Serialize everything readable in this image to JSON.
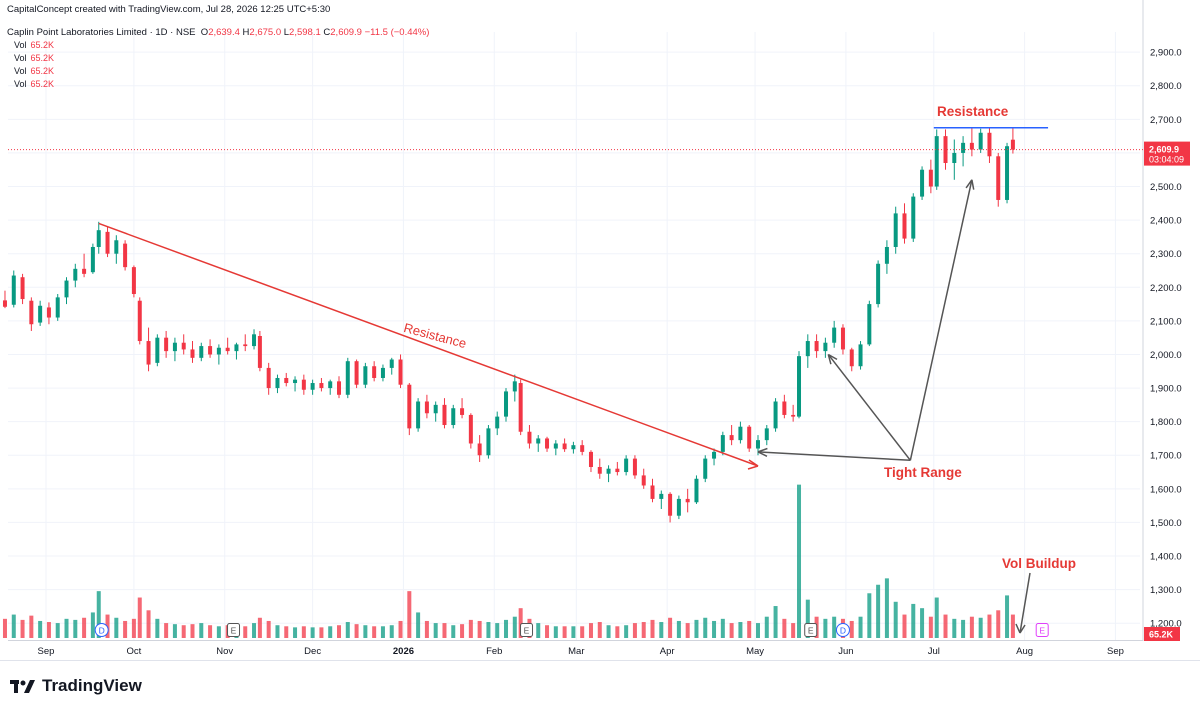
{
  "header": {
    "credit": "CapitalConcept created with TradingView.com, Jul 28, 2026 12:25 UTC+5:30",
    "symbol": "Caplin Point Laboratories Limited · 1D · NSE",
    "o_label": "O",
    "o_value": "2,639.4",
    "h_label": "H",
    "h_value": "2,675.0",
    "l_label": "L",
    "l_value": "2,598.1",
    "c_label": "C",
    "c_value": "2,609.9",
    "change": "−11.5 (−0.44%)",
    "vol_rows": [
      {
        "label": "Vol",
        "value": "65.2K"
      },
      {
        "label": "Vol",
        "value": "65.2K"
      },
      {
        "label": "Vol",
        "value": "65.2K"
      },
      {
        "label": "Vol",
        "value": "65.2K"
      }
    ]
  },
  "footer": {
    "brand": "TradingView"
  },
  "colors": {
    "up": "#089981",
    "down": "#f23645",
    "trend": "#e53935",
    "resistance": "#2962ff",
    "arrow": "#555555",
    "grid": "#f0f3fa"
  },
  "chart_data": {
    "type": "candlestick",
    "ylim": [
      1150,
      2960
    ],
    "y_ticks": [
      1200,
      1300,
      1400,
      1500,
      1600,
      1700,
      1800,
      1900,
      2000,
      2100,
      2200,
      2300,
      2400,
      2500,
      2600,
      2700,
      2800,
      2900
    ],
    "y_tick_labels": [
      "1,200.0",
      "1,300.0",
      "1,400.0",
      "1,500.0",
      "1,600.0",
      "1,700.0",
      "1,800.0",
      "1,900.0",
      "2,000.0",
      "2,100.0",
      "2,200.0",
      "2,300.0",
      "2,400.0",
      "2,500.0",
      "2,600.0",
      "2,700.0",
      "2,800.0",
      "2,900.0"
    ],
    "x_labels": [
      "Sep",
      "Oct",
      "Nov",
      "Dec",
      "2026",
      "Feb",
      "Mar",
      "Apr",
      "May",
      "Jun",
      "Jul",
      "Aug",
      "Sep"
    ],
    "last_price": "2,609.9",
    "last_price_value": 2609.9,
    "countdown": "03:04:09",
    "last_volume": "65.2K",
    "event_markers": [
      {
        "date": "2025-09-20",
        "label": "D"
      },
      {
        "date": "2025-11-04",
        "label": "E"
      },
      {
        "date": "2026-02-12",
        "label": "E"
      },
      {
        "date": "2026-05-20",
        "label": "E"
      },
      {
        "date": "2026-05-31",
        "label": "D"
      },
      {
        "date": "2026-08-07",
        "label": "E"
      }
    ],
    "annotations": {
      "trendline": {
        "label": "Resistance",
        "from": {
          "date": "2025-09-19",
          "price": 2390
        },
        "to": {
          "date": "2026-05-02",
          "price": 1668
        }
      },
      "resistance": {
        "label": "Resistance",
        "price": 2675,
        "from": "2026-07-01",
        "to": "2026-08-09"
      },
      "tight_range": {
        "label": "Tight Range",
        "anchor": {
          "date": "2026-06-23",
          "price": 1685
        },
        "targets": [
          {
            "date": "2026-05-02",
            "price": 1710
          },
          {
            "date": "2026-05-26",
            "price": 2000
          },
          {
            "date": "2026-07-14",
            "price": 2520
          }
        ]
      },
      "vol_buildup": {
        "label": "Vol Buildup"
      }
    },
    "candles": [
      {
        "d": "2025-08-18",
        "o": 2161,
        "h": 2190,
        "l": 2138,
        "c": 2142,
        "v": 90
      },
      {
        "d": "2025-08-21",
        "o": 2148,
        "h": 2250,
        "l": 2140,
        "c": 2235,
        "v": 110
      },
      {
        "d": "2025-08-24",
        "o": 2230,
        "h": 2240,
        "l": 2150,
        "c": 2165,
        "v": 85
      },
      {
        "d": "2025-08-27",
        "o": 2160,
        "h": 2170,
        "l": 2070,
        "c": 2090,
        "v": 105
      },
      {
        "d": "2025-08-30",
        "o": 2095,
        "h": 2160,
        "l": 2085,
        "c": 2145,
        "v": 80
      },
      {
        "d": "2025-09-02",
        "o": 2140,
        "h": 2155,
        "l": 2090,
        "c": 2110,
        "v": 75
      },
      {
        "d": "2025-09-05",
        "o": 2110,
        "h": 2180,
        "l": 2100,
        "c": 2170,
        "v": 70
      },
      {
        "d": "2025-09-08",
        "o": 2170,
        "h": 2230,
        "l": 2150,
        "c": 2220,
        "v": 90
      },
      {
        "d": "2025-09-11",
        "o": 2220,
        "h": 2270,
        "l": 2200,
        "c": 2255,
        "v": 85
      },
      {
        "d": "2025-09-14",
        "o": 2255,
        "h": 2300,
        "l": 2230,
        "c": 2240,
        "v": 95
      },
      {
        "d": "2025-09-17",
        "o": 2245,
        "h": 2330,
        "l": 2240,
        "c": 2320,
        "v": 120
      },
      {
        "d": "2025-09-19",
        "o": 2320,
        "h": 2395,
        "l": 2300,
        "c": 2370,
        "v": 220
      },
      {
        "d": "2025-09-22",
        "o": 2365,
        "h": 2380,
        "l": 2290,
        "c": 2300,
        "v": 110
      },
      {
        "d": "2025-09-25",
        "o": 2300,
        "h": 2355,
        "l": 2270,
        "c": 2340,
        "v": 95
      },
      {
        "d": "2025-09-28",
        "o": 2330,
        "h": 2340,
        "l": 2250,
        "c": 2260,
        "v": 80
      },
      {
        "d": "2025-10-01",
        "o": 2260,
        "h": 2265,
        "l": 2170,
        "c": 2180,
        "v": 90
      },
      {
        "d": "2025-10-03",
        "o": 2160,
        "h": 2170,
        "l": 2030,
        "c": 2040,
        "v": 190
      },
      {
        "d": "2025-10-06",
        "o": 2040,
        "h": 2080,
        "l": 1950,
        "c": 1970,
        "v": 130
      },
      {
        "d": "2025-10-09",
        "o": 1975,
        "h": 2060,
        "l": 1965,
        "c": 2050,
        "v": 90
      },
      {
        "d": "2025-10-12",
        "o": 2050,
        "h": 2070,
        "l": 1990,
        "c": 2010,
        "v": 70
      },
      {
        "d": "2025-10-15",
        "o": 2010,
        "h": 2050,
        "l": 1980,
        "c": 2035,
        "v": 65
      },
      {
        "d": "2025-10-18",
        "o": 2035,
        "h": 2060,
        "l": 2000,
        "c": 2015,
        "v": 60
      },
      {
        "d": "2025-10-21",
        "o": 2015,
        "h": 2040,
        "l": 1975,
        "c": 1990,
        "v": 65
      },
      {
        "d": "2025-10-24",
        "o": 1990,
        "h": 2035,
        "l": 1980,
        "c": 2025,
        "v": 70
      },
      {
        "d": "2025-10-27",
        "o": 2025,
        "h": 2045,
        "l": 1990,
        "c": 2000,
        "v": 60
      },
      {
        "d": "2025-10-30",
        "o": 2000,
        "h": 2030,
        "l": 1970,
        "c": 2020,
        "v": 55
      },
      {
        "d": "2025-11-02",
        "o": 2020,
        "h": 2050,
        "l": 2000,
        "c": 2010,
        "v": 60
      },
      {
        "d": "2025-11-05",
        "o": 2010,
        "h": 2035,
        "l": 1985,
        "c": 2030,
        "v": 60
      },
      {
        "d": "2025-11-08",
        "o": 2030,
        "h": 2060,
        "l": 2010,
        "c": 2025,
        "v": 55
      },
      {
        "d": "2025-11-11",
        "o": 2025,
        "h": 2075,
        "l": 2015,
        "c": 2060,
        "v": 70
      },
      {
        "d": "2025-11-13",
        "o": 2055,
        "h": 2070,
        "l": 1950,
        "c": 1960,
        "v": 95
      },
      {
        "d": "2025-11-16",
        "o": 1960,
        "h": 1975,
        "l": 1880,
        "c": 1900,
        "v": 80
      },
      {
        "d": "2025-11-19",
        "o": 1900,
        "h": 1940,
        "l": 1885,
        "c": 1930,
        "v": 60
      },
      {
        "d": "2025-11-22",
        "o": 1930,
        "h": 1945,
        "l": 1905,
        "c": 1915,
        "v": 55
      },
      {
        "d": "2025-11-25",
        "o": 1915,
        "h": 1935,
        "l": 1890,
        "c": 1925,
        "v": 50
      },
      {
        "d": "2025-11-28",
        "o": 1925,
        "h": 1940,
        "l": 1880,
        "c": 1895,
        "v": 55
      },
      {
        "d": "2025-12-01",
        "o": 1895,
        "h": 1925,
        "l": 1880,
        "c": 1915,
        "v": 50
      },
      {
        "d": "2025-12-04",
        "o": 1915,
        "h": 1930,
        "l": 1890,
        "c": 1900,
        "v": 50
      },
      {
        "d": "2025-12-07",
        "o": 1900,
        "h": 1925,
        "l": 1880,
        "c": 1920,
        "v": 55
      },
      {
        "d": "2025-12-10",
        "o": 1920,
        "h": 1935,
        "l": 1870,
        "c": 1880,
        "v": 60
      },
      {
        "d": "2025-12-13",
        "o": 1880,
        "h": 1990,
        "l": 1870,
        "c": 1980,
        "v": 75
      },
      {
        "d": "2025-12-16",
        "o": 1980,
        "h": 1985,
        "l": 1900,
        "c": 1910,
        "v": 65
      },
      {
        "d": "2025-12-19",
        "o": 1910,
        "h": 1975,
        "l": 1900,
        "c": 1965,
        "v": 60
      },
      {
        "d": "2025-12-22",
        "o": 1965,
        "h": 1980,
        "l": 1920,
        "c": 1930,
        "v": 55
      },
      {
        "d": "2025-12-25",
        "o": 1930,
        "h": 1970,
        "l": 1920,
        "c": 1960,
        "v": 55
      },
      {
        "d": "2025-12-28",
        "o": 1960,
        "h": 1990,
        "l": 1940,
        "c": 1985,
        "v": 60
      },
      {
        "d": "2025-12-31",
        "o": 1985,
        "h": 2000,
        "l": 1900,
        "c": 1910,
        "v": 80
      },
      {
        "d": "2026-01-03",
        "o": 1910,
        "h": 1915,
        "l": 1760,
        "c": 1780,
        "v": 220
      },
      {
        "d": "2026-01-06",
        "o": 1780,
        "h": 1870,
        "l": 1770,
        "c": 1860,
        "v": 120
      },
      {
        "d": "2026-01-09",
        "o": 1860,
        "h": 1880,
        "l": 1810,
        "c": 1825,
        "v": 80
      },
      {
        "d": "2026-01-12",
        "o": 1825,
        "h": 1860,
        "l": 1800,
        "c": 1850,
        "v": 70
      },
      {
        "d": "2026-01-15",
        "o": 1850,
        "h": 1870,
        "l": 1780,
        "c": 1790,
        "v": 70
      },
      {
        "d": "2026-01-18",
        "o": 1790,
        "h": 1850,
        "l": 1780,
        "c": 1840,
        "v": 60
      },
      {
        "d": "2026-01-21",
        "o": 1840,
        "h": 1870,
        "l": 1810,
        "c": 1820,
        "v": 65
      },
      {
        "d": "2026-01-24",
        "o": 1820,
        "h": 1825,
        "l": 1720,
        "c": 1735,
        "v": 85
      },
      {
        "d": "2026-01-27",
        "o": 1735,
        "h": 1760,
        "l": 1680,
        "c": 1700,
        "v": 80
      },
      {
        "d": "2026-01-30",
        "o": 1700,
        "h": 1790,
        "l": 1690,
        "c": 1780,
        "v": 75
      },
      {
        "d": "2026-02-02",
        "o": 1780,
        "h": 1830,
        "l": 1760,
        "c": 1815,
        "v": 70
      },
      {
        "d": "2026-02-05",
        "o": 1815,
        "h": 1900,
        "l": 1800,
        "c": 1890,
        "v": 85
      },
      {
        "d": "2026-02-08",
        "o": 1890,
        "h": 1940,
        "l": 1860,
        "c": 1920,
        "v": 100
      },
      {
        "d": "2026-02-10",
        "o": 1915,
        "h": 1925,
        "l": 1760,
        "c": 1770,
        "v": 140
      },
      {
        "d": "2026-02-13",
        "o": 1770,
        "h": 1790,
        "l": 1720,
        "c": 1735,
        "v": 90
      },
      {
        "d": "2026-02-16",
        "o": 1735,
        "h": 1760,
        "l": 1710,
        "c": 1750,
        "v": 70
      },
      {
        "d": "2026-02-19",
        "o": 1750,
        "h": 1755,
        "l": 1710,
        "c": 1720,
        "v": 60
      },
      {
        "d": "2026-02-22",
        "o": 1720,
        "h": 1745,
        "l": 1700,
        "c": 1735,
        "v": 55
      },
      {
        "d": "2026-02-25",
        "o": 1735,
        "h": 1750,
        "l": 1710,
        "c": 1718,
        "v": 55
      },
      {
        "d": "2026-02-28",
        "o": 1718,
        "h": 1740,
        "l": 1705,
        "c": 1730,
        "v": 55
      },
      {
        "d": "2026-03-03",
        "o": 1730,
        "h": 1745,
        "l": 1700,
        "c": 1710,
        "v": 55
      },
      {
        "d": "2026-03-06",
        "o": 1710,
        "h": 1715,
        "l": 1650,
        "c": 1665,
        "v": 70
      },
      {
        "d": "2026-03-09",
        "o": 1665,
        "h": 1690,
        "l": 1630,
        "c": 1645,
        "v": 75
      },
      {
        "d": "2026-03-12",
        "o": 1645,
        "h": 1670,
        "l": 1620,
        "c": 1660,
        "v": 60
      },
      {
        "d": "2026-03-15",
        "o": 1660,
        "h": 1680,
        "l": 1640,
        "c": 1650,
        "v": 55
      },
      {
        "d": "2026-03-18",
        "o": 1650,
        "h": 1700,
        "l": 1640,
        "c": 1690,
        "v": 60
      },
      {
        "d": "2026-03-21",
        "o": 1690,
        "h": 1700,
        "l": 1630,
        "c": 1640,
        "v": 70
      },
      {
        "d": "2026-03-24",
        "o": 1640,
        "h": 1660,
        "l": 1600,
        "c": 1610,
        "v": 75
      },
      {
        "d": "2026-03-27",
        "o": 1610,
        "h": 1630,
        "l": 1560,
        "c": 1570,
        "v": 85
      },
      {
        "d": "2026-03-30",
        "o": 1570,
        "h": 1595,
        "l": 1540,
        "c": 1585,
        "v": 75
      },
      {
        "d": "2026-04-02",
        "o": 1585,
        "h": 1590,
        "l": 1500,
        "c": 1520,
        "v": 95
      },
      {
        "d": "2026-04-05",
        "o": 1520,
        "h": 1580,
        "l": 1510,
        "c": 1570,
        "v": 80
      },
      {
        "d": "2026-04-08",
        "o": 1570,
        "h": 1600,
        "l": 1530,
        "c": 1560,
        "v": 70
      },
      {
        "d": "2026-04-11",
        "o": 1560,
        "h": 1640,
        "l": 1555,
        "c": 1630,
        "v": 85
      },
      {
        "d": "2026-04-14",
        "o": 1630,
        "h": 1700,
        "l": 1620,
        "c": 1690,
        "v": 95
      },
      {
        "d": "2026-04-17",
        "o": 1690,
        "h": 1720,
        "l": 1670,
        "c": 1710,
        "v": 80
      },
      {
        "d": "2026-04-20",
        "o": 1710,
        "h": 1770,
        "l": 1700,
        "c": 1760,
        "v": 90
      },
      {
        "d": "2026-04-23",
        "o": 1760,
        "h": 1790,
        "l": 1730,
        "c": 1745,
        "v": 70
      },
      {
        "d": "2026-04-26",
        "o": 1745,
        "h": 1800,
        "l": 1735,
        "c": 1785,
        "v": 75
      },
      {
        "d": "2026-04-29",
        "o": 1785,
        "h": 1790,
        "l": 1710,
        "c": 1720,
        "v": 80
      },
      {
        "d": "2026-05-02",
        "o": 1720,
        "h": 1760,
        "l": 1700,
        "c": 1745,
        "v": 70
      },
      {
        "d": "2026-05-05",
        "o": 1745,
        "h": 1790,
        "l": 1730,
        "c": 1780,
        "v": 100
      },
      {
        "d": "2026-05-08",
        "o": 1780,
        "h": 1870,
        "l": 1770,
        "c": 1860,
        "v": 150
      },
      {
        "d": "2026-05-11",
        "o": 1860,
        "h": 1880,
        "l": 1810,
        "c": 1820,
        "v": 90
      },
      {
        "d": "2026-05-14",
        "o": 1820,
        "h": 1850,
        "l": 1800,
        "c": 1815,
        "v": 70
      },
      {
        "d": "2026-05-16",
        "o": 1815,
        "h": 2010,
        "l": 1810,
        "c": 1995,
        "v": 720
      },
      {
        "d": "2026-05-19",
        "o": 1995,
        "h": 2060,
        "l": 1960,
        "c": 2040,
        "v": 180
      },
      {
        "d": "2026-05-22",
        "o": 2040,
        "h": 2060,
        "l": 1990,
        "c": 2010,
        "v": 100
      },
      {
        "d": "2026-05-25",
        "o": 2010,
        "h": 2050,
        "l": 1990,
        "c": 2035,
        "v": 90
      },
      {
        "d": "2026-05-28",
        "o": 2035,
        "h": 2100,
        "l": 2020,
        "c": 2080,
        "v": 100
      },
      {
        "d": "2026-05-31",
        "o": 2080,
        "h": 2090,
        "l": 2000,
        "c": 2015,
        "v": 90
      },
      {
        "d": "2026-06-03",
        "o": 2015,
        "h": 2020,
        "l": 1950,
        "c": 1965,
        "v": 80
      },
      {
        "d": "2026-06-06",
        "o": 1965,
        "h": 2040,
        "l": 1955,
        "c": 2030,
        "v": 100
      },
      {
        "d": "2026-06-09",
        "o": 2030,
        "h": 2160,
        "l": 2025,
        "c": 2150,
        "v": 210
      },
      {
        "d": "2026-06-12",
        "o": 2150,
        "h": 2280,
        "l": 2140,
        "c": 2270,
        "v": 250
      },
      {
        "d": "2026-06-15",
        "o": 2270,
        "h": 2340,
        "l": 2240,
        "c": 2320,
        "v": 280
      },
      {
        "d": "2026-06-18",
        "o": 2320,
        "h": 2440,
        "l": 2300,
        "c": 2420,
        "v": 170
      },
      {
        "d": "2026-06-21",
        "o": 2420,
        "h": 2450,
        "l": 2330,
        "c": 2345,
        "v": 110
      },
      {
        "d": "2026-06-24",
        "o": 2345,
        "h": 2480,
        "l": 2335,
        "c": 2470,
        "v": 160
      },
      {
        "d": "2026-06-27",
        "o": 2470,
        "h": 2560,
        "l": 2460,
        "c": 2550,
        "v": 140
      },
      {
        "d": "2026-06-30",
        "o": 2550,
        "h": 2580,
        "l": 2480,
        "c": 2500,
        "v": 100
      },
      {
        "d": "2026-07-02",
        "o": 2500,
        "h": 2670,
        "l": 2490,
        "c": 2650,
        "v": 190
      },
      {
        "d": "2026-07-05",
        "o": 2650,
        "h": 2670,
        "l": 2550,
        "c": 2570,
        "v": 110
      },
      {
        "d": "2026-07-08",
        "o": 2570,
        "h": 2640,
        "l": 2520,
        "c": 2600,
        "v": 90
      },
      {
        "d": "2026-07-11",
        "o": 2600,
        "h": 2650,
        "l": 2560,
        "c": 2630,
        "v": 85
      },
      {
        "d": "2026-07-14",
        "o": 2630,
        "h": 2675,
        "l": 2590,
        "c": 2610,
        "v": 100
      },
      {
        "d": "2026-07-17",
        "o": 2610,
        "h": 2672,
        "l": 2600,
        "c": 2660,
        "v": 95
      },
      {
        "d": "2026-07-20",
        "o": 2660,
        "h": 2675,
        "l": 2570,
        "c": 2590,
        "v": 110
      },
      {
        "d": "2026-07-23",
        "o": 2590,
        "h": 2600,
        "l": 2440,
        "c": 2460,
        "v": 130
      },
      {
        "d": "2026-07-26",
        "o": 2460,
        "h": 2630,
        "l": 2450,
        "c": 2620,
        "v": 200
      },
      {
        "d": "2026-07-28",
        "o": 2639.4,
        "h": 2675,
        "l": 2598.1,
        "c": 2609.9,
        "v": 110
      }
    ]
  }
}
